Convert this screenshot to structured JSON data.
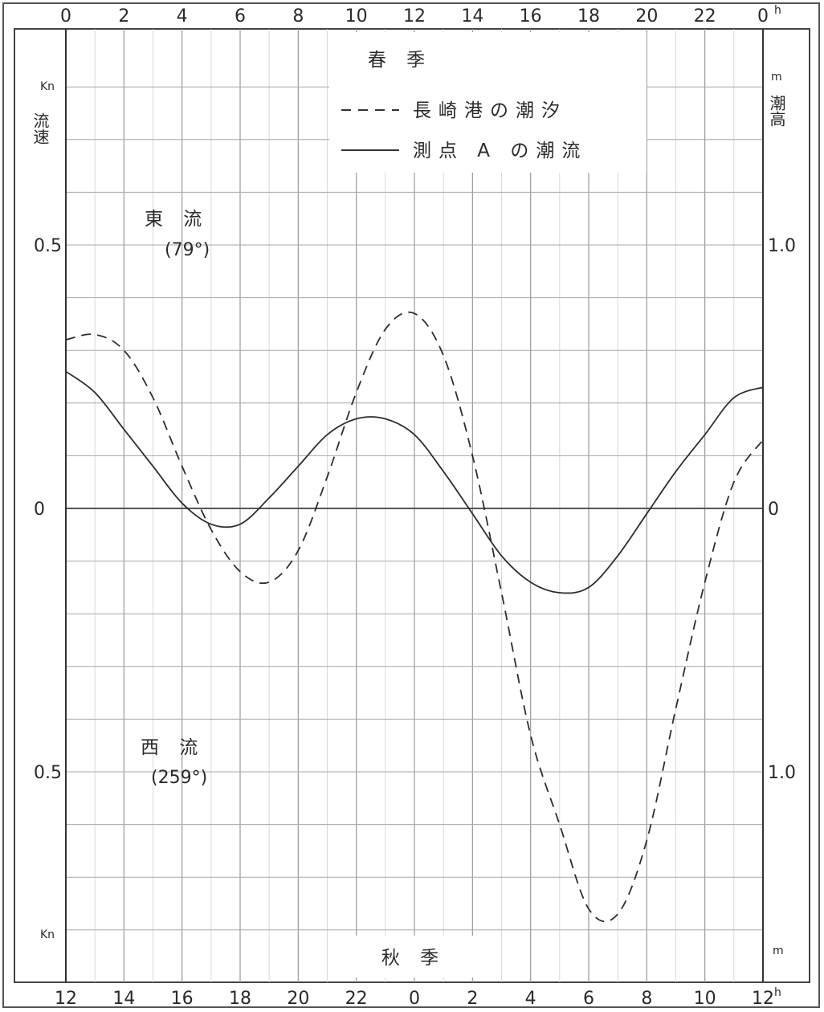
{
  "chart_data": {
    "type": "line",
    "title_top": "春 季",
    "title_bottom": "秋 季",
    "legend": [
      {
        "label": "長崎港の潮汐",
        "dash": "dashed",
        "color": "#333333"
      },
      {
        "label": "測点 A の潮流",
        "dash": "solid",
        "color": "#333333"
      }
    ],
    "x_top_ticks": [
      "0",
      "2",
      "4",
      "6",
      "8",
      "10",
      "12",
      "14",
      "16",
      "18",
      "20",
      "22",
      "0"
    ],
    "x_top_unit": "h",
    "x_bottom_ticks": [
      "12",
      "14",
      "16",
      "18",
      "20",
      "22",
      "0",
      "2",
      "4",
      "6",
      "8",
      "10",
      "12"
    ],
    "x_bottom_unit": "h",
    "x_range_hours": [
      0,
      24
    ],
    "left_axis": {
      "unit_top": "Kn",
      "label": "流速",
      "unit_bottom": "Kn",
      "tick_labels": [
        {
          "text": "0.5",
          "value": 0.5
        },
        {
          "text": "0",
          "value": 0
        },
        {
          "text": "0.5",
          "value": -0.5
        }
      ],
      "range": [
        -0.8,
        0.8
      ]
    },
    "right_axis": {
      "unit_top": "m",
      "label": "潮高",
      "unit_bottom": "m",
      "tick_labels": [
        {
          "text": "1.0",
          "value": 1.0
        },
        {
          "text": "0",
          "value": 0
        },
        {
          "text": "1.0",
          "value": -1.0
        }
      ],
      "range": [
        -1.6,
        1.6
      ]
    },
    "annotations": [
      {
        "text": "東 流",
        "sub": "(79°)",
        "region": "upper-left"
      },
      {
        "text": "西 流",
        "sub": "(259°)",
        "region": "lower-left"
      }
    ],
    "grid": true,
    "series": [
      {
        "name": "測点 A の潮流",
        "style": "solid",
        "x": [
          0,
          1,
          2,
          3,
          4,
          5,
          6,
          7,
          8,
          9,
          10,
          11,
          12,
          13,
          14,
          15,
          16,
          17,
          18,
          19,
          20,
          21,
          22,
          23,
          24
        ],
        "y": [
          0.26,
          0.22,
          0.15,
          0.08,
          0.01,
          -0.03,
          -0.03,
          0.02,
          0.08,
          0.14,
          0.17,
          0.17,
          0.14,
          0.07,
          -0.01,
          -0.09,
          -0.14,
          -0.16,
          -0.15,
          -0.09,
          -0.01,
          0.07,
          0.14,
          0.21,
          0.23
        ]
      },
      {
        "name": "長崎港の潮汐",
        "style": "dashed",
        "x": [
          0,
          1,
          2,
          3,
          4,
          5,
          6,
          7,
          8,
          9,
          10,
          11,
          12,
          13,
          14,
          15,
          16,
          17,
          18,
          19,
          20,
          21,
          22,
          23,
          24
        ],
        "y": [
          0.32,
          0.33,
          0.3,
          0.21,
          0.08,
          -0.04,
          -0.12,
          -0.14,
          -0.08,
          0.06,
          0.22,
          0.34,
          0.37,
          0.29,
          0.1,
          -0.16,
          -0.43,
          -0.6,
          -0.76,
          -0.77,
          -0.63,
          -0.38,
          -0.14,
          0.05,
          0.13
        ]
      }
    ]
  }
}
